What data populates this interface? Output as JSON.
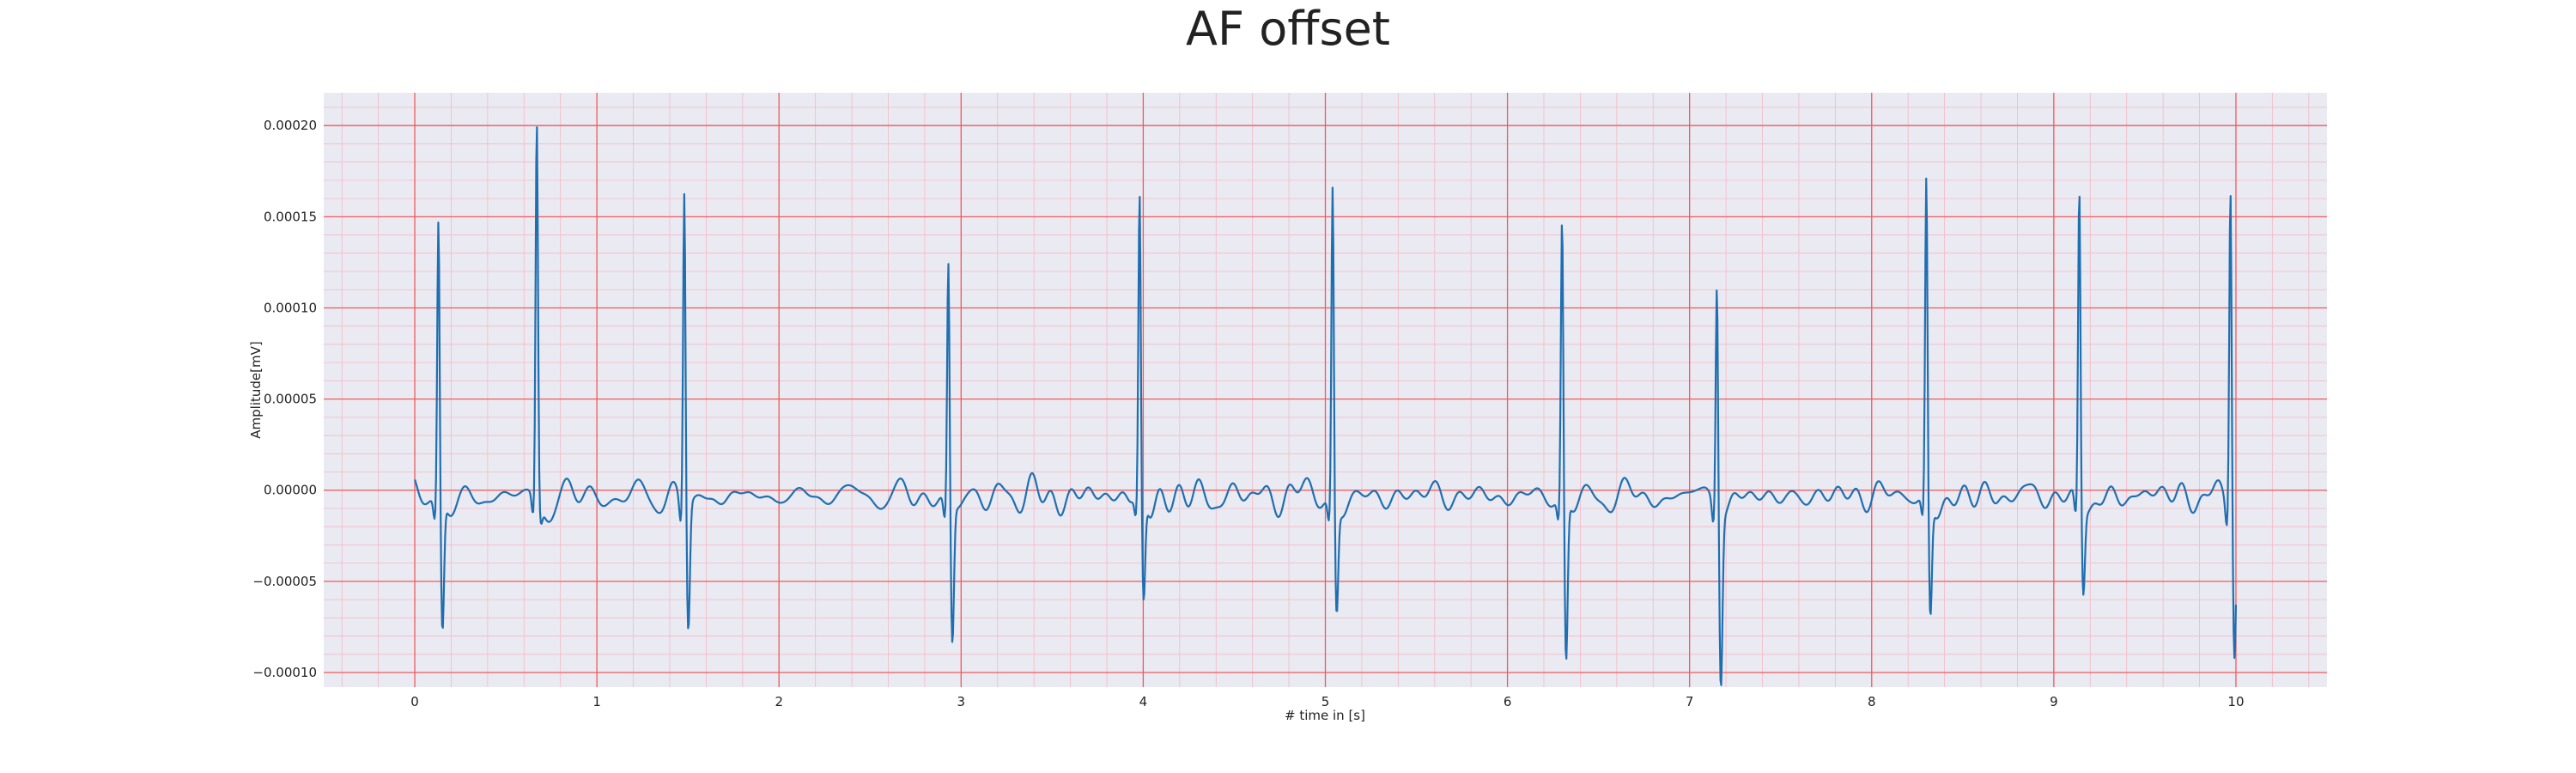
{
  "chart_data": {
    "type": "line",
    "title": "AF offset",
    "xlabel": "# time in [s]",
    "ylabel": "Amplitude[mV]",
    "xlim": [
      -0.5,
      10.5
    ],
    "ylim": [
      -0.000108,
      0.000218
    ],
    "xticks": [
      0,
      1,
      2,
      3,
      4,
      5,
      6,
      7,
      8,
      9,
      10
    ],
    "xtick_labels": [
      "0",
      "1",
      "2",
      "3",
      "4",
      "5",
      "6",
      "7",
      "8",
      "9",
      "10"
    ],
    "yticks": [
      -0.0001,
      -5e-05,
      0,
      5e-05,
      0.0001,
      0.00015,
      0.0002
    ],
    "ytick_labels": [
      "−0.00010",
      "−0.00005",
      "0.00000",
      "0.00005",
      "0.00010",
      "0.00015",
      "0.00020"
    ],
    "grid": {
      "major": true,
      "minor": true,
      "major_color": "#ef5a5a",
      "minor_color": "#f5b8c4"
    },
    "background_color": "#eaeaf2",
    "series": [
      {
        "color": "#1f6fb0",
        "x_start": 0,
        "x_end": 10,
        "baseline": -3e-06,
        "noise_amplitude": 1.1e-05,
        "beats": [
          {
            "t": 0.13,
            "peak": 0.000152,
            "trough": -7.4e-05
          },
          {
            "t": 0.67,
            "peak": 0.000205,
            "trough": -1.2e-05
          },
          {
            "t": 1.48,
            "peak": 0.000173,
            "trough": -7.1e-05
          },
          {
            "t": 2.93,
            "peak": 0.000131,
            "trough": -7.8e-05
          },
          {
            "t": 3.98,
            "peak": 0.000161,
            "trough": -6.1e-05
          },
          {
            "t": 5.04,
            "peak": 0.000173,
            "trough": -6e-05
          },
          {
            "t": 6.3,
            "peak": 0.000152,
            "trough": -9.2e-05
          },
          {
            "t": 7.15,
            "peak": 0.000124,
            "trough": -9.6e-05
          },
          {
            "t": 8.3,
            "peak": 0.000173,
            "trough": -6.6e-05
          },
          {
            "t": 9.14,
            "peak": 0.000172,
            "trough": -4.8e-05
          },
          {
            "t": 9.97,
            "peak": 0.000176,
            "trough": -8.5e-05
          }
        ]
      }
    ]
  }
}
